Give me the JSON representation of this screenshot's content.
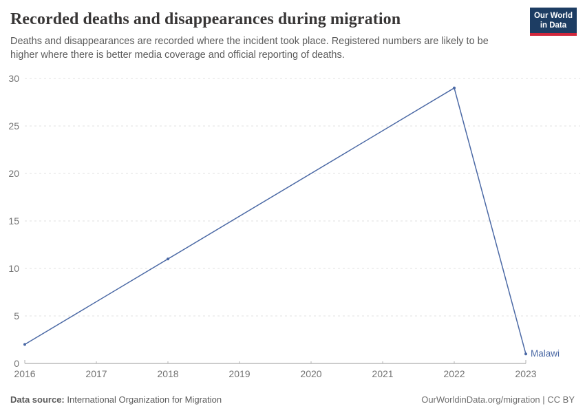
{
  "header": {
    "title": "Recorded deaths and disappearances during migration",
    "subtitle": "Deaths and disappearances are recorded where the incident took place. Registered numbers are likely to be higher where there is better media coverage and official reporting of deaths.",
    "logo": {
      "line1": "Our World",
      "line2": "in Data"
    }
  },
  "chart_data": {
    "type": "line",
    "title": "Recorded deaths and disappearances during migration",
    "xlabel": "",
    "ylabel": "",
    "xlim": [
      2016,
      2023
    ],
    "ylim": [
      0,
      30
    ],
    "x_ticks": [
      2016,
      2017,
      2018,
      2019,
      2020,
      2021,
      2022,
      2023
    ],
    "y_ticks": [
      0,
      5,
      10,
      15,
      20,
      25,
      30
    ],
    "grid": "horizontal-dashed",
    "legend_position": "end-of-line-label",
    "series": [
      {
        "name": "Malawi",
        "color": "#4b69a5",
        "x": [
          2016,
          2018,
          2022,
          2023
        ],
        "values": [
          2,
          11,
          29,
          1
        ]
      }
    ]
  },
  "footer": {
    "source_label": "Data source:",
    "source_text": "International Organization for Migration",
    "credit": "OurWorldinData.org/migration | CC BY"
  },
  "colors": {
    "accent_line": "#4b69a5",
    "logo_bg": "#1d3d63",
    "logo_red": "#d1273c",
    "title_text": "#383636",
    "body_text": "#5b5b5b",
    "tick_text": "#737373",
    "grid": "#e0e0e0",
    "axis": "#9a9a9a",
    "tick_mark": "#b0b0b0"
  }
}
